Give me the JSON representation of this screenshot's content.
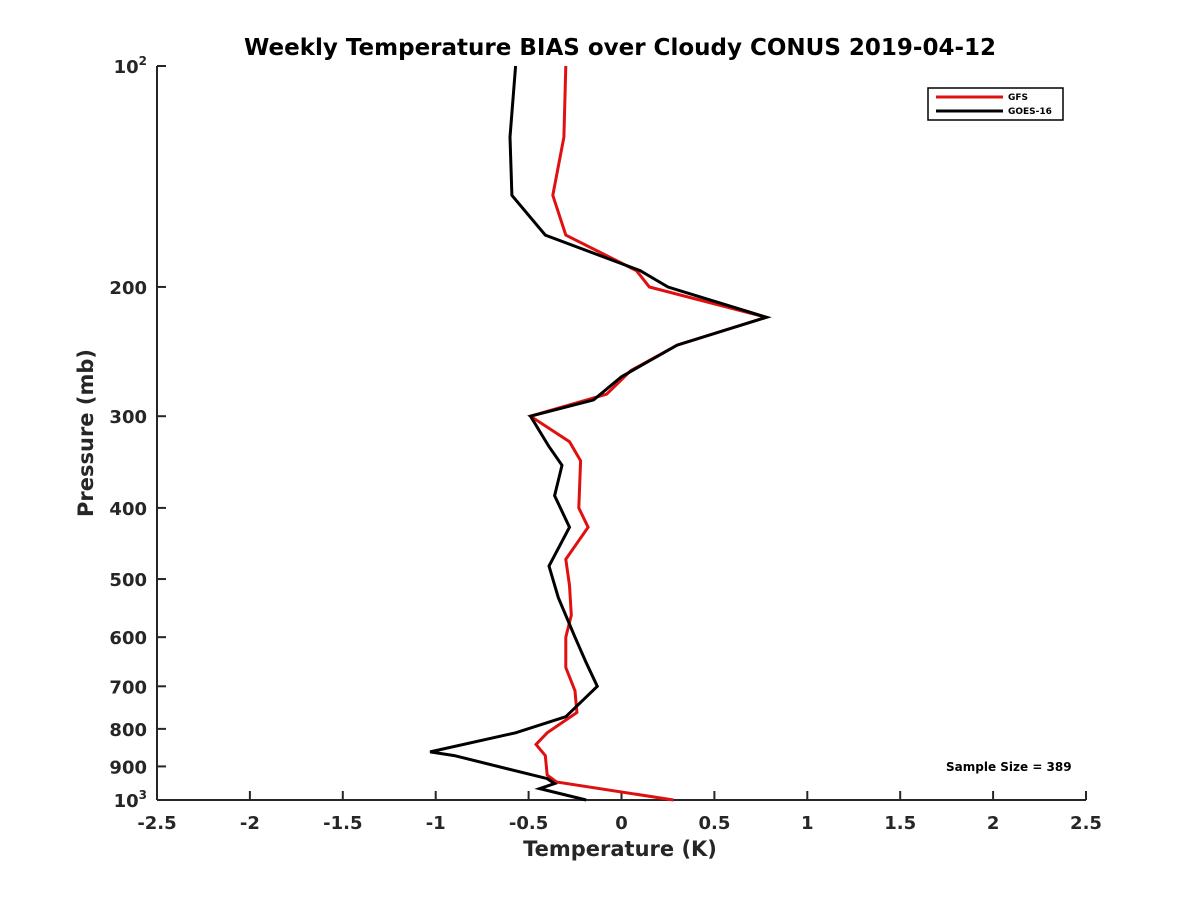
{
  "chart_data": {
    "type": "line",
    "title": "Weekly Temperature BIAS over Cloudy CONUS 2019-04-12",
    "xlabel": "Temperature (K)",
    "ylabel": "Pressure (mb)",
    "xlim": [
      -2.5,
      2.5
    ],
    "ylim": [
      100,
      1000
    ],
    "y_scale": "log",
    "y_reversed": true,
    "x_ticks": [
      "-2.5",
      "-2",
      "-1.5",
      "-1",
      "-0.5",
      "0",
      "0.5",
      "1",
      "1.5",
      "2",
      "2.5"
    ],
    "y_ticks": [
      {
        "value": 100,
        "base": "10",
        "exp": "2"
      },
      {
        "value": 200,
        "label": "200"
      },
      {
        "value": 300,
        "label": "300"
      },
      {
        "value": 400,
        "label": "400"
      },
      {
        "value": 500,
        "label": "500"
      },
      {
        "value": 600,
        "label": "600"
      },
      {
        "value": 700,
        "label": "700"
      },
      {
        "value": 800,
        "label": "800"
      },
      {
        "value": 900,
        "label": "900"
      },
      {
        "value": 1000,
        "base": "10",
        "exp": "3"
      }
    ],
    "legend_position": "top-right",
    "annotation": "Sample Size = 389",
    "series": [
      {
        "name": "GFS",
        "color": "#e01010",
        "points": [
          [
            -0.3,
            100
          ],
          [
            -0.31,
            125
          ],
          [
            -0.37,
            150
          ],
          [
            -0.3,
            170
          ],
          [
            0.08,
            190
          ],
          [
            0.15,
            200
          ],
          [
            0.78,
            220
          ],
          [
            0.3,
            240
          ],
          [
            0.05,
            260
          ],
          [
            -0.08,
            280
          ],
          [
            -0.49,
            300
          ],
          [
            -0.28,
            325
          ],
          [
            -0.22,
            345
          ],
          [
            -0.23,
            400
          ],
          [
            -0.18,
            425
          ],
          [
            -0.3,
            470
          ],
          [
            -0.28,
            510
          ],
          [
            -0.27,
            560
          ],
          [
            -0.3,
            600
          ],
          [
            -0.3,
            660
          ],
          [
            -0.25,
            710
          ],
          [
            -0.24,
            760
          ],
          [
            -0.4,
            810
          ],
          [
            -0.46,
            840
          ],
          [
            -0.41,
            870
          ],
          [
            -0.4,
            925
          ],
          [
            -0.35,
            945
          ],
          [
            0.28,
            1000
          ]
        ]
      },
      {
        "name": "GOES-16",
        "color": "#000000",
        "points": [
          [
            -0.57,
            100
          ],
          [
            -0.6,
            125
          ],
          [
            -0.59,
            150
          ],
          [
            -0.41,
            170
          ],
          [
            0.1,
            190
          ],
          [
            0.25,
            200
          ],
          [
            0.78,
            220
          ],
          [
            0.3,
            240
          ],
          [
            0.0,
            265
          ],
          [
            -0.15,
            285
          ],
          [
            -0.49,
            300
          ],
          [
            -0.39,
            330
          ],
          [
            -0.32,
            350
          ],
          [
            -0.36,
            385
          ],
          [
            -0.28,
            425
          ],
          [
            -0.39,
            480
          ],
          [
            -0.34,
            530
          ],
          [
            -0.25,
            600
          ],
          [
            -0.19,
            650
          ],
          [
            -0.13,
            700
          ],
          [
            -0.3,
            770
          ],
          [
            -0.57,
            810
          ],
          [
            -1.03,
            860
          ],
          [
            -0.9,
            870
          ],
          [
            -0.4,
            935
          ],
          [
            -0.36,
            950
          ],
          [
            -0.44,
            965
          ],
          [
            -0.19,
            1000
          ]
        ]
      }
    ]
  }
}
